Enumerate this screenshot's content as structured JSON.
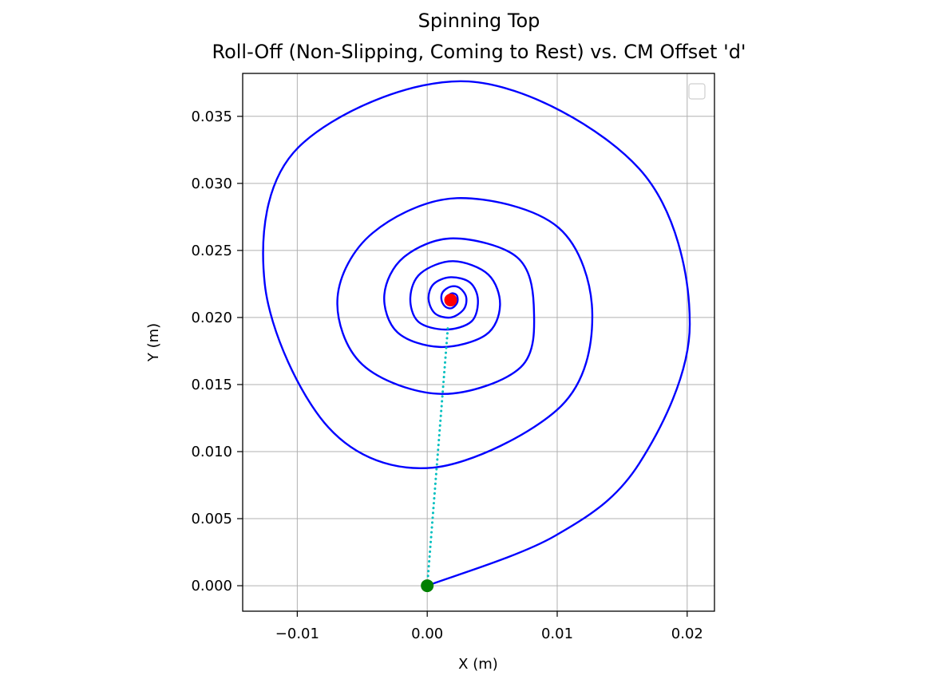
{
  "chart_data": {
    "type": "line",
    "title": "Spinning Top",
    "subtitle": "Roll-Off (Non-Slipping, Coming to Rest) vs. CM Offset 'd'",
    "xlabel": "X (m)",
    "ylabel": "Y (m)",
    "xlim": [
      -0.0142,
      0.0221
    ],
    "ylim": [
      -0.0019,
      0.0382
    ],
    "xticks": [
      -0.01,
      0.0,
      0.01,
      0.02
    ],
    "xtick_labels": [
      "−0.01",
      "0.00",
      "0.01",
      "0.02"
    ],
    "yticks": [
      0.0,
      0.005,
      0.01,
      0.015,
      0.02,
      0.025,
      0.03,
      0.035
    ],
    "ytick_labels": [
      "0.000",
      "0.005",
      "0.010",
      "0.015",
      "0.020",
      "0.025",
      "0.030",
      "0.035"
    ],
    "grid": true,
    "legend": {
      "placement": "upper right",
      "entries": []
    },
    "colors": {
      "path": "#0000ff",
      "link": "#00bfbf",
      "start": "#008000",
      "end": "#ff0000"
    },
    "series": [
      {
        "style": "solid",
        "color": "#0000ff",
        "kind": "decaying spiral",
        "center": [
          0.0018,
          0.0214
        ],
        "points": [
          [
            0.0,
            0.0
          ],
          [
            0.0098,
            0.0037
          ],
          [
            0.0163,
            0.0091
          ],
          [
            0.0202,
            0.0195
          ],
          [
            0.0163,
            0.0311
          ],
          [
            0.0032,
            0.0376
          ],
          [
            -0.0099,
            0.0327
          ],
          [
            -0.0125,
            0.0225
          ],
          [
            -0.0076,
            0.0118
          ],
          [
            0.0004,
            0.0088
          ],
          [
            0.0102,
            0.0133
          ],
          [
            0.0127,
            0.0202
          ],
          [
            0.0101,
            0.0267
          ],
          [
            0.0023,
            0.0289
          ],
          [
            -0.0042,
            0.0263
          ],
          [
            -0.0069,
            0.0215
          ],
          [
            -0.005,
            0.0165
          ],
          [
            0.0011,
            0.0143
          ],
          [
            0.0072,
            0.0163
          ],
          [
            0.0082,
            0.0208
          ],
          [
            0.0069,
            0.0245
          ],
          [
            0.002,
            0.0259
          ],
          [
            -0.0018,
            0.0245
          ],
          [
            -0.0033,
            0.0217
          ],
          [
            -0.0023,
            0.0189
          ],
          [
            0.001,
            0.0178
          ],
          [
            0.0045,
            0.0187
          ],
          [
            0.0056,
            0.0209
          ],
          [
            0.0047,
            0.0232
          ],
          [
            0.002,
            0.0242
          ],
          [
            -0.0005,
            0.0233
          ],
          [
            -0.0013,
            0.0215
          ],
          [
            -0.0007,
            0.0197
          ],
          [
            0.0014,
            0.0191
          ],
          [
            0.0034,
            0.0197
          ],
          [
            0.0039,
            0.0213
          ],
          [
            0.0033,
            0.0226
          ],
          [
            0.0018,
            0.023
          ],
          [
            0.0005,
            0.0225
          ],
          [
            0.0001,
            0.0214
          ],
          [
            0.0006,
            0.0203
          ],
          [
            0.0018,
            0.02
          ],
          [
            0.0028,
            0.0206
          ],
          [
            0.003,
            0.0215
          ],
          [
            0.0025,
            0.0222
          ],
          [
            0.0018,
            0.0223
          ],
          [
            0.0012,
            0.0219
          ],
          [
            0.0011,
            0.0213
          ],
          [
            0.0014,
            0.0208
          ],
          [
            0.0019,
            0.0207
          ],
          [
            0.0023,
            0.0211
          ],
          [
            0.0023,
            0.0216
          ],
          [
            0.002,
            0.0218
          ],
          [
            0.0017,
            0.0217
          ],
          [
            0.0016,
            0.0214
          ],
          [
            0.0018,
            0.0212
          ],
          [
            0.0019,
            0.0213
          ],
          [
            0.0018,
            0.0214
          ]
        ]
      },
      {
        "style": "dotted",
        "color": "#00bfbf",
        "points": [
          [
            0.0,
            0.0
          ],
          [
            0.0016,
            0.0194
          ]
        ]
      }
    ],
    "markers": [
      {
        "color": "#008000",
        "x": 0.0,
        "y": 0.0
      },
      {
        "color": "#ff0000",
        "x": 0.0018,
        "y": 0.0213
      }
    ]
  }
}
